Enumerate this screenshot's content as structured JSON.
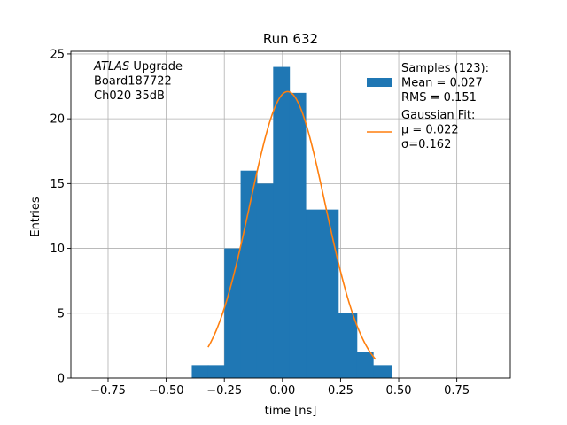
{
  "chart_data": {
    "type": "bar",
    "title": "Run 632",
    "xlabel": "time [ns]",
    "ylabel": "Entries",
    "xlim": [
      -0.91,
      0.98
    ],
    "ylim": [
      0,
      25.2
    ],
    "xticks": [
      "-0.75",
      "-0.50",
      "-0.25",
      "0.00",
      "0.25",
      "0.50",
      "0.75"
    ],
    "xtick_values": [
      -0.75,
      -0.5,
      -0.25,
      0.0,
      0.25,
      0.5,
      0.75
    ],
    "yticks": [
      "0",
      "5",
      "10",
      "15",
      "20",
      "25"
    ],
    "ytick_values": [
      0,
      5,
      10,
      15,
      20,
      25
    ],
    "grid": true,
    "bar_color": "#1f77b4",
    "fit_color": "#ff7f0e",
    "histogram": {
      "bin_edges": [
        -0.39,
        -0.32,
        -0.25,
        -0.18,
        -0.11,
        -0.04,
        0.03,
        0.1,
        0.17,
        0.24,
        0.32,
        0.39,
        0.47
      ],
      "counts": [
        1,
        1,
        10,
        16,
        15,
        24,
        22,
        13,
        13,
        5,
        2,
        1
      ]
    },
    "gaussian_fit": {
      "mu": 0.022,
      "sigma": 0.162,
      "amplitude": 22.1,
      "x_range": [
        -0.32,
        0.4
      ]
    },
    "annotation_lines": [
      {
        "italic": "ATLAS",
        "text": " Upgrade"
      },
      {
        "italic": "",
        "text": " Board187722"
      },
      {
        "italic": "",
        "text": " Ch020 35dB"
      }
    ],
    "legend": {
      "position": "top-right",
      "entries": [
        {
          "kind": "patch",
          "lines": [
            "Samples (123):",
            " Mean = 0.027",
            " RMS = 0.151"
          ]
        },
        {
          "kind": "line",
          "lines": [
            "Gaussian Fit:",
            " μ = 0.022",
            " σ=0.162"
          ]
        }
      ]
    }
  }
}
